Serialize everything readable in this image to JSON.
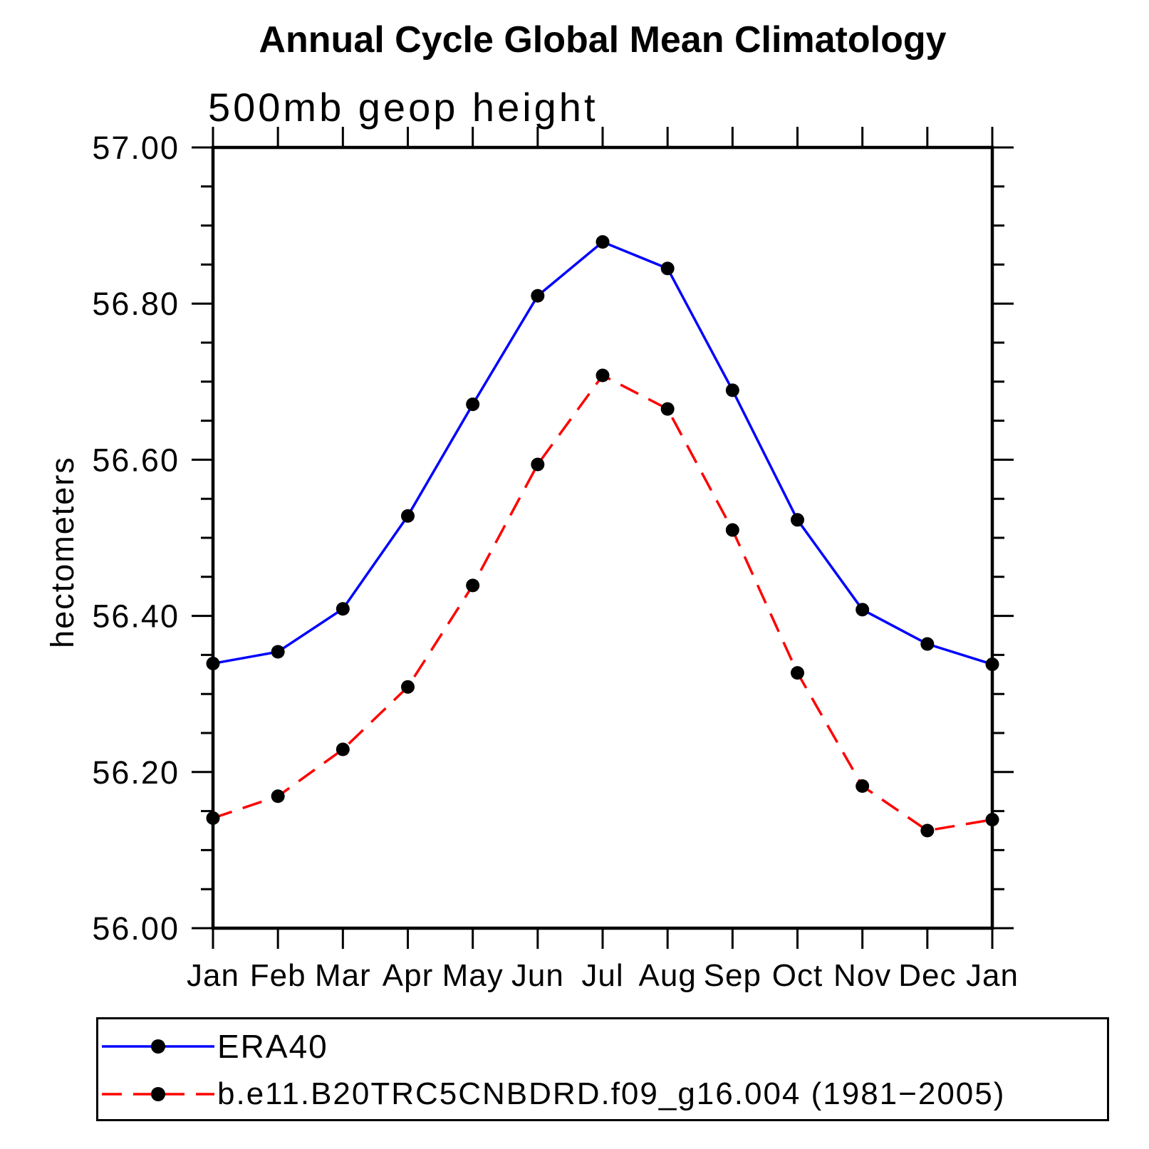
{
  "title": "Annual Cycle Global Mean Climatology",
  "subtitle": "500mb geop height",
  "ylabel": "hectometers",
  "chart_data": {
    "type": "line",
    "categories": [
      "Jan",
      "Feb",
      "Mar",
      "Apr",
      "May",
      "Jun",
      "Jul",
      "Aug",
      "Sep",
      "Oct",
      "Nov",
      "Dec",
      "Jan"
    ],
    "xlabel": "",
    "ylabel": "hectometers",
    "title": "Annual Cycle Global Mean Climatology",
    "subtitle": "500mb geop height",
    "ylim": [
      56.0,
      57.0
    ],
    "ytick_major": [
      56.0,
      56.2,
      56.4,
      56.6,
      56.8,
      57.0
    ],
    "ytick_labels": [
      "56.00",
      "56.20",
      "56.40",
      "56.60",
      "56.80",
      "57.00"
    ],
    "ytick_minor_step": 0.05,
    "grid": false,
    "legend_position": "bottom",
    "frame_color": "#000000",
    "series": [
      {
        "name": "ERA40",
        "color": "#0000ff",
        "dash": "solid",
        "marker": "circle",
        "marker_color": "#000000",
        "values": [
          56.339,
          56.354,
          56.409,
          56.528,
          56.671,
          56.81,
          56.879,
          56.845,
          56.689,
          56.523,
          56.408,
          56.364,
          56.338
        ]
      },
      {
        "name": "b.e11.B20TRC5CNBDRD.f09_g16.004 (1981−2005)",
        "color": "#ff0000",
        "dash": "dashed",
        "marker": "circle",
        "marker_color": "#000000",
        "values": [
          56.141,
          56.169,
          56.229,
          56.309,
          56.439,
          56.594,
          56.708,
          56.665,
          56.51,
          56.327,
          56.182,
          56.125,
          56.139
        ]
      }
    ]
  }
}
